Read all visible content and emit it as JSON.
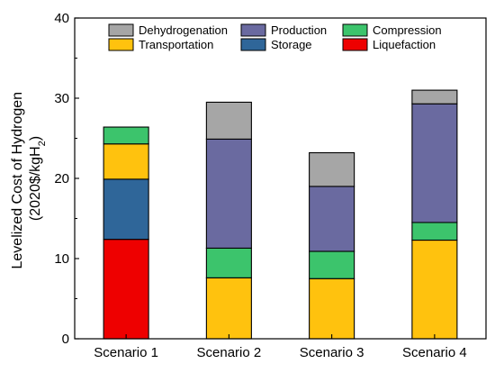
{
  "chart_data": {
    "type": "bar",
    "stacked": true,
    "categories": [
      "Scenario 1",
      "Scenario 2",
      "Scenario 3",
      "Scenario 4"
    ],
    "ylabel_line1": "Levelized Cost of Hydrogen",
    "ylabel_line2_prefix": "(2020$/kgH",
    "ylabel_line2_sub": "2",
    "ylabel_line2_suffix": ")",
    "ylim": [
      0,
      40
    ],
    "yticks": [
      0,
      10,
      20,
      30,
      40
    ],
    "legend_position": "top, inside plot, 3 columns",
    "series": [
      {
        "name": "Liquefaction",
        "color": "#ee0000",
        "values": [
          12.4,
          0,
          0,
          0
        ]
      },
      {
        "name": "Storage",
        "color": "#2f6699",
        "values": [
          7.5,
          0,
          0,
          0
        ]
      },
      {
        "name": "Transportation",
        "color": "#ffc20e",
        "values": [
          4.4,
          7.6,
          7.5,
          12.3
        ]
      },
      {
        "name": "Compression",
        "color": "#3cc46c",
        "values": [
          2.1,
          3.7,
          3.4,
          2.2
        ]
      },
      {
        "name": "Production",
        "color": "#6a6aa0",
        "values": [
          0,
          13.6,
          8.1,
          14.8
        ]
      },
      {
        "name": "Dehydrogenation",
        "color": "#a6a6a6",
        "values": [
          0,
          4.6,
          4.2,
          1.7
        ]
      }
    ],
    "legend_order": [
      "Dehydrogenation",
      "Production",
      "Compression",
      "Transportation",
      "Storage",
      "Liquefaction"
    ]
  }
}
